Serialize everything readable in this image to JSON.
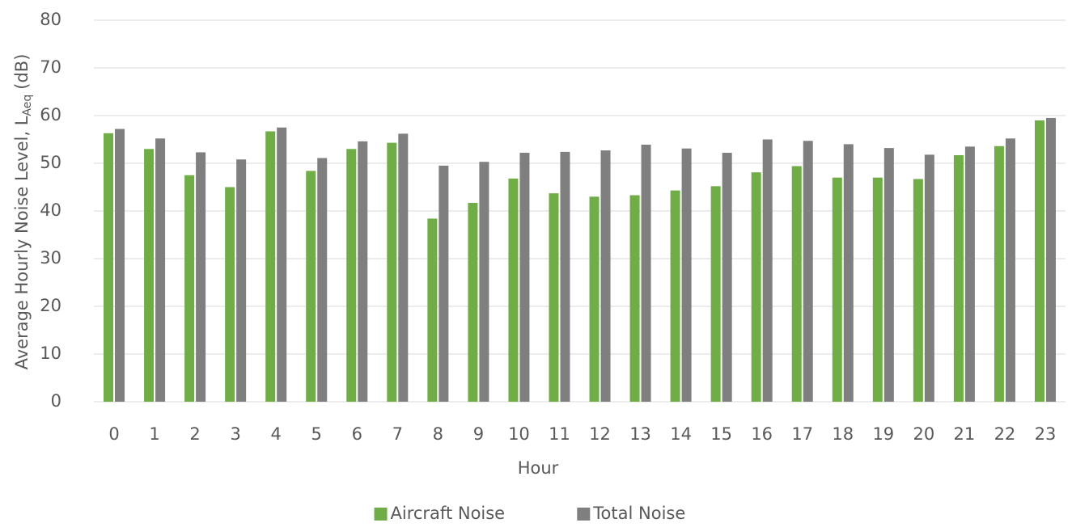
{
  "chart_data": {
    "type": "bar",
    "x_label": "Hour",
    "y_label": {
      "main": "Average Hourly Noise Level, L",
      "subscript": "Aeq",
      "unit": "(dB)"
    },
    "categories": [
      "0",
      "1",
      "2",
      "3",
      "4",
      "5",
      "6",
      "7",
      "8",
      "9",
      "10",
      "11",
      "12",
      "13",
      "14",
      "15",
      "16",
      "17",
      "18",
      "19",
      "20",
      "21",
      "22",
      "23"
    ],
    "series": [
      {
        "name": "Aircraft Noise",
        "color": "#70ad47",
        "values": [
          56.3,
          53.0,
          47.5,
          45.0,
          56.7,
          48.4,
          53.0,
          54.3,
          38.4,
          41.7,
          46.8,
          43.7,
          43.0,
          43.3,
          44.3,
          45.2,
          48.1,
          49.4,
          47.0,
          47.0,
          46.7,
          51.7,
          53.6,
          59.0
        ]
      },
      {
        "name": "Total Noise",
        "color": "#7f7f7f",
        "values": [
          57.2,
          55.2,
          52.3,
          50.8,
          57.5,
          51.1,
          54.6,
          56.2,
          49.5,
          50.3,
          52.2,
          52.4,
          52.7,
          53.9,
          53.1,
          52.2,
          55.0,
          54.7,
          54.0,
          53.2,
          51.8,
          53.5,
          55.2,
          59.5
        ]
      }
    ],
    "ylim": [
      0,
      80
    ],
    "yticks": [
      0,
      10,
      20,
      30,
      40,
      50,
      60,
      70,
      80
    ],
    "grid": true,
    "legend": "bottom"
  }
}
